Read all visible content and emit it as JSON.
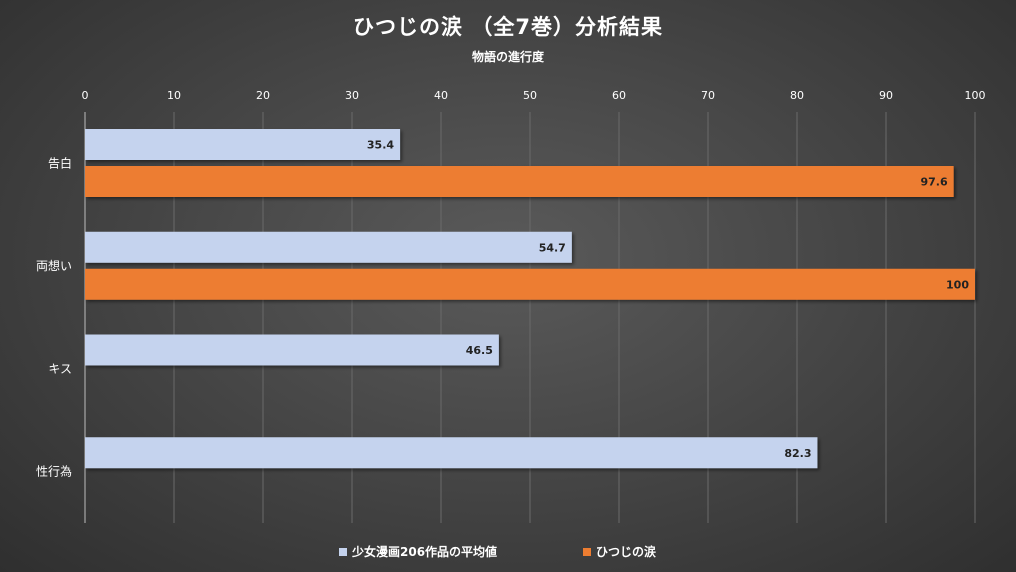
{
  "colors": {
    "series_average": "#c5d3ee",
    "series_hitsuji": "#ed7d31",
    "text": "#ffffff",
    "gridline": "#6a6a6a"
  },
  "chart_data": {
    "type": "bar",
    "orientation": "horizontal",
    "title": "ひつじの涙 （全7巻）分析結果",
    "subtitle": "物語の進行度",
    "categories": [
      "告白",
      "両想い",
      "キス",
      "性行為"
    ],
    "series": [
      {
        "name": "少女漫画206作品の平均値",
        "color": "#c5d3ee",
        "values": [
          35.4,
          54.7,
          46.5,
          82.3
        ]
      },
      {
        "name": "ひつじの涙",
        "color": "#ed7d31",
        "values": [
          97.6,
          100,
          null,
          null
        ]
      }
    ],
    "value_labels": [
      [
        "35.4",
        "54.7",
        "46.5",
        "82.3"
      ],
      [
        "97.6",
        "100",
        "",
        ""
      ]
    ],
    "xlim": [
      0,
      100
    ],
    "xticks": [
      0,
      10,
      20,
      30,
      40,
      50,
      60,
      70,
      80,
      90,
      100
    ],
    "xtick_labels": [
      "0",
      "10",
      "20",
      "30",
      "40",
      "50",
      "60",
      "70",
      "80",
      "90",
      "100"
    ],
    "x_axis_position": "top",
    "grid": true,
    "legend_position": "bottom"
  }
}
